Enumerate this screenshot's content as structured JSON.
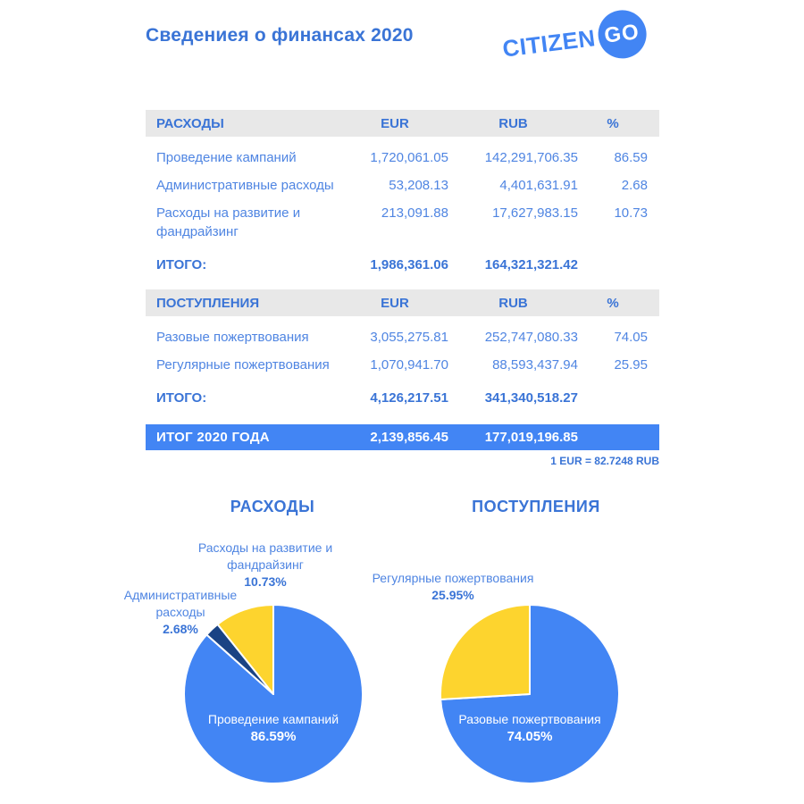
{
  "header": {
    "title": "Сведениея о финансах 2020",
    "logo_text": "CITIZEN",
    "logo_badge": "GO"
  },
  "tables": {
    "expenses": {
      "title": "РАСХОДЫ",
      "columns": [
        "EUR",
        "RUB",
        "%"
      ],
      "rows": [
        {
          "name": "Проведение кампаний",
          "eur": "1,720,061.05",
          "rub": "142,291,706.35",
          "pct": "86.59"
        },
        {
          "name": "Административные расходы",
          "eur": "53,208.13",
          "rub": "4,401,631.91",
          "pct": "2.68"
        },
        {
          "name": "Расходы на развитие и фандрайзинг",
          "eur": "213,091.88",
          "rub": "17,627,983.15",
          "pct": "10.73"
        }
      ],
      "total": {
        "label": "ИТОГО:",
        "eur": "1,986,361.06",
        "rub": "164,321,321.42"
      }
    },
    "income": {
      "title": "ПОСТУПЛЕНИЯ",
      "columns": [
        "EUR",
        "RUB",
        "%"
      ],
      "rows": [
        {
          "name": "Разовые пожертвования",
          "eur": "3,055,275.81",
          "rub": "252,747,080.33",
          "pct": "74.05"
        },
        {
          "name": "Регулярные пожертвования",
          "eur": "1,070,941.70",
          "rub": "88,593,437.94",
          "pct": "25.95"
        }
      ],
      "total": {
        "label": "ИТОГО:",
        "eur": "4,126,217.51",
        "rub": "341,340,518.27"
      }
    }
  },
  "summary": {
    "label": "ИТОГ 2020 ГОДА",
    "eur": "2,139,856.45",
    "rub": "177,019,196.85"
  },
  "exchange_note": "1 EUR = 82.7248 RUB",
  "charts": {
    "expenses_heading": "РАСХОДЫ",
    "income_heading": "ПОСТУПЛЕНИЯ"
  },
  "colors": {
    "primary_blue": "#4285F4",
    "navy": "#1A4384",
    "yellow": "#FDD42E",
    "text_blue": "#3A74D6",
    "header_bg": "#E8E8E8"
  },
  "chart_data": [
    {
      "type": "pie",
      "title": "РАСХОДЫ",
      "start_angle_deg": 0,
      "direction": "clockwise",
      "legend_position": "none",
      "slices": [
        {
          "label": "Проведение кампаний",
          "value": 86.59,
          "pct_label": "86.59%",
          "color": "#4285F4",
          "label_position": "inside"
        },
        {
          "label": "Административные расходы",
          "value": 2.68,
          "pct_label": "2.68%",
          "color": "#1A4384",
          "label_position": "outside-left"
        },
        {
          "label": "Расходы на развитие и фандрайзинг",
          "value": 10.73,
          "pct_label": "10.73%",
          "color": "#FDD42E",
          "label_position": "outside-top"
        }
      ]
    },
    {
      "type": "pie",
      "title": "ПОСТУПЛЕНИЯ",
      "start_angle_deg": 0,
      "direction": "clockwise",
      "legend_position": "none",
      "slices": [
        {
          "label": "Разовые пожертвования",
          "value": 74.05,
          "pct_label": "74.05%",
          "color": "#4285F4",
          "label_position": "inside"
        },
        {
          "label": "Регулярные пожертвования",
          "value": 25.95,
          "pct_label": "25.95%",
          "color": "#FDD42E",
          "label_position": "outside-top"
        }
      ]
    }
  ]
}
